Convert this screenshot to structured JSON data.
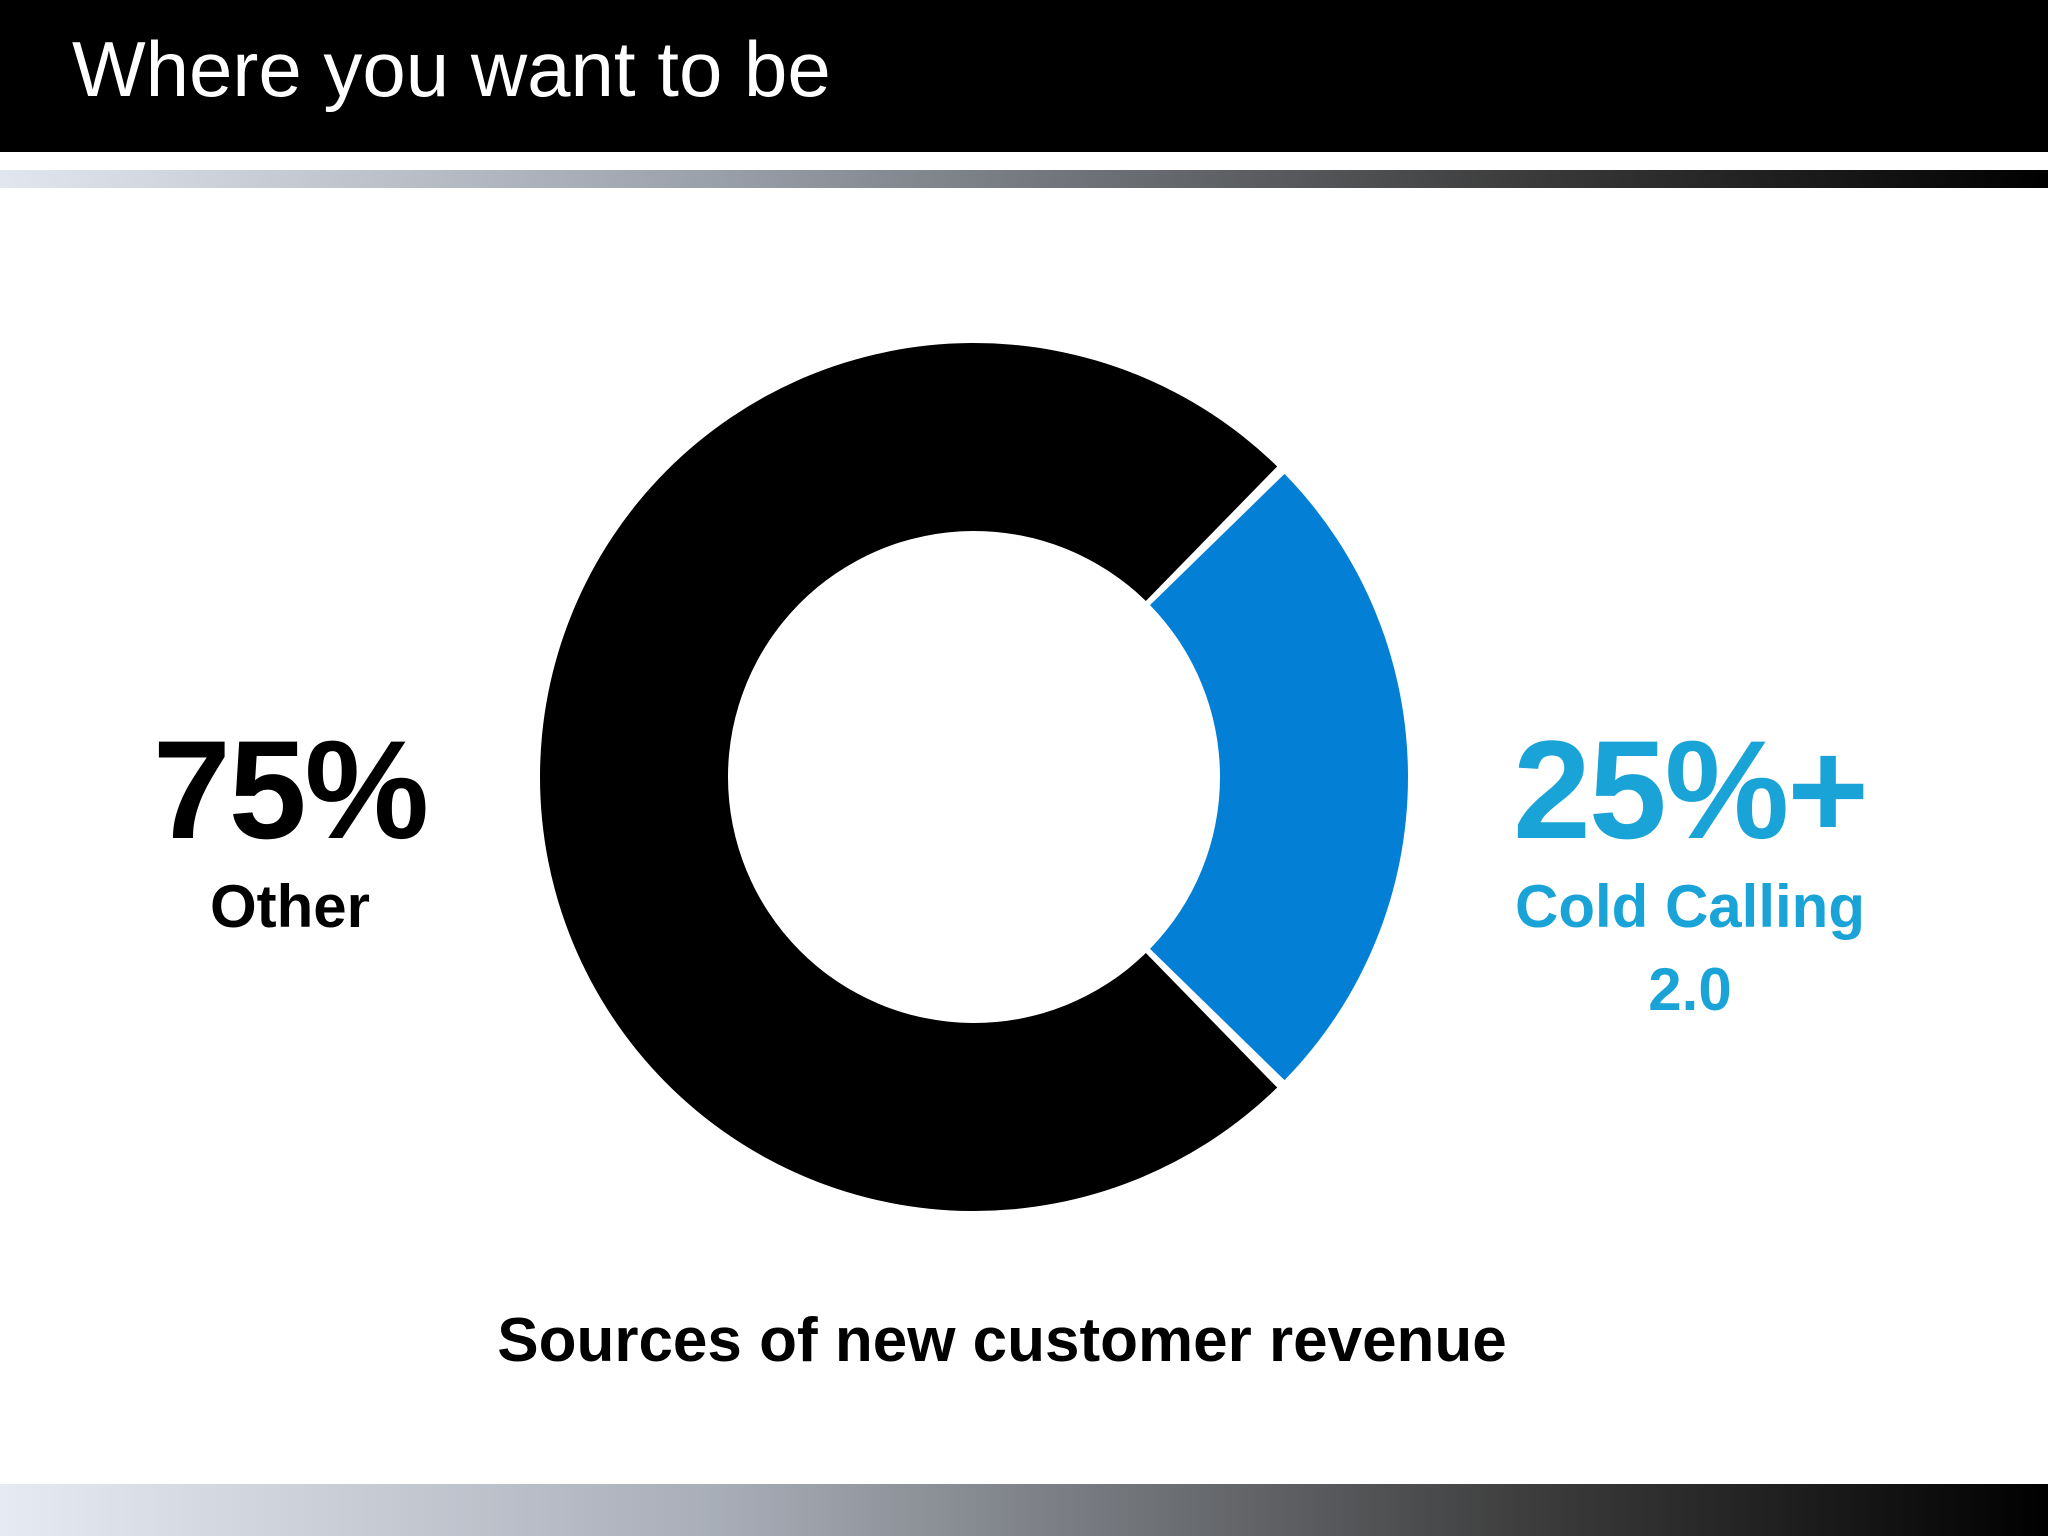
{
  "title": "Where you want to be",
  "colors": {
    "title_bar": "#000000",
    "title_text": "#ffffff",
    "other_slice": "#000000",
    "cold_calling_slice": "#037fd6",
    "cold_calling_text": "#1aa3d6"
  },
  "chart_data": {
    "type": "pie",
    "subtype": "donut",
    "caption": "Sources of new customer revenue",
    "slices": [
      {
        "name": "Other",
        "value": 75,
        "value_label": "75%",
        "label_lines": [
          "Other"
        ],
        "color": "#000000"
      },
      {
        "name": "Cold Calling 2.0",
        "value": 25,
        "value_label": "25%+",
        "label_lines": [
          "Cold Calling",
          "2.0"
        ],
        "color": "#037fd6"
      }
    ]
  }
}
